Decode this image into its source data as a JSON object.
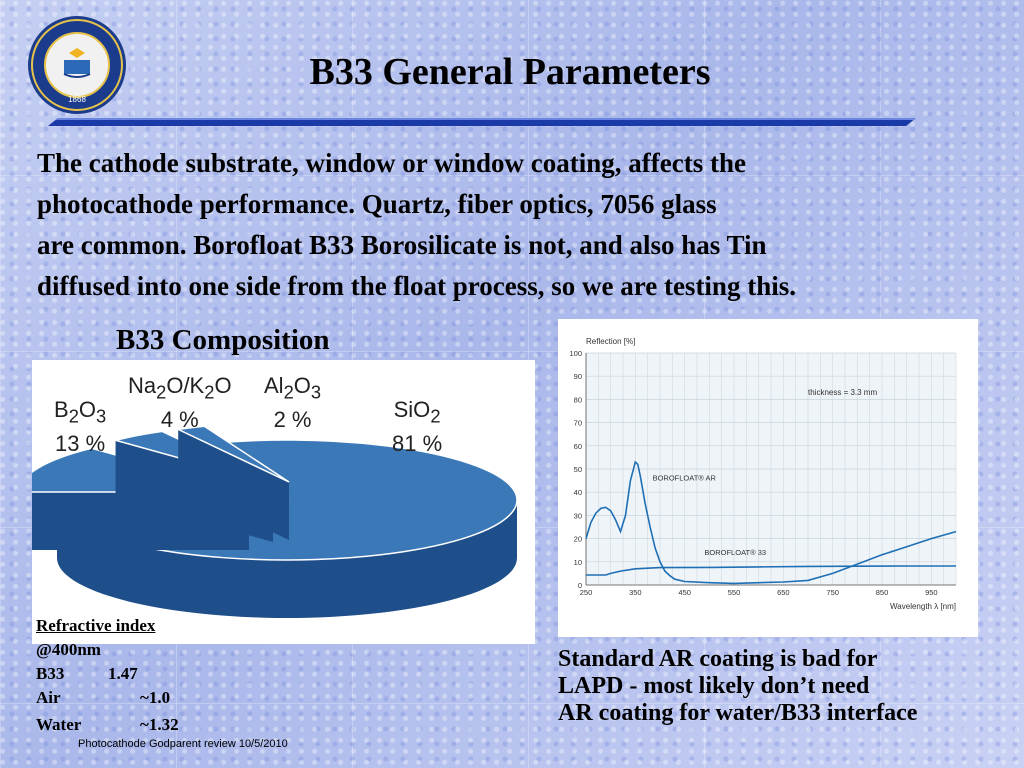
{
  "slide": {
    "title": "B33 General Parameters",
    "intro_lines": [
      "The cathode substrate, window or window coating, affects the",
      "photocathode performance. Quartz, fiber optics, 7056 glass",
      "are common. Borofloat B33 Borosilicate is not, and also has Tin",
      "diffused into one side from the float process, so we are testing this."
    ],
    "composition_title": "B33 Composition",
    "refractive": {
      "heading": "Refractive index",
      "subheading": "@400nm",
      "rows": [
        {
          "material": "B33",
          "value": "1.47"
        },
        {
          "material": "Air",
          "value": "~1.0"
        },
        {
          "material": "Water",
          "value": "~1.32"
        }
      ]
    },
    "ar_note_lines": [
      "Standard AR coating is bad for",
      "LAPD - most likely don’t need",
      "AR coating for water/B33 interface"
    ],
    "footer": "Photocathode Godparent review  10/5/2010",
    "seal": {
      "year": "1868",
      "ring_text": "THE UNIVERSITY OF CALIFORNIA BERKELEY"
    }
  },
  "colors": {
    "pie": "#3a78b8",
    "pie_dark": "#1f4f8a",
    "curve": "#1f6fb5",
    "rule": "#1a3aa8"
  },
  "chart_data": [
    {
      "type": "pie",
      "slices": [
        {
          "name": "SiO2",
          "label_main": "SiO",
          "label_sub": "2",
          "percent_label": "81 %",
          "value": 81
        },
        {
          "name": "B2O3",
          "label_main": "B",
          "label_sub": "2",
          "label_main2": "O",
          "label_sub2": "3",
          "percent_label": "13 %",
          "value": 13
        },
        {
          "name": "Na2O/K2O",
          "label_main": "Na",
          "label_sub": "2",
          "label_main2": "O/K",
          "label_sub2": "2",
          "label_main3": "O",
          "percent_label": "4 %",
          "value": 4
        },
        {
          "name": "Al2O3",
          "label_main": "Al",
          "label_sub": "2",
          "label_main2": "O",
          "label_sub2": "3",
          "percent_label": "2 %",
          "value": 2
        }
      ]
    },
    {
      "type": "line",
      "ylabel": "Reflection [%]",
      "xlabel": "Wavelength λ [nm]",
      "xlim": [
        250,
        1000
      ],
      "ylim": [
        0,
        100
      ],
      "xticks": [
        250,
        350,
        450,
        550,
        650,
        750,
        850,
        950
      ],
      "yticks": [
        0,
        10,
        20,
        30,
        40,
        50,
        60,
        70,
        80,
        90,
        100
      ],
      "grid": true,
      "annotation": "thickness = 3.3 mm",
      "series": [
        {
          "name": "BOROFLOAT® AR",
          "x": [
            250,
            260,
            270,
            280,
            290,
            300,
            310,
            320,
            330,
            340,
            350,
            355,
            360,
            370,
            380,
            390,
            400,
            410,
            420,
            430,
            450,
            500,
            550,
            600,
            650,
            700,
            750,
            800,
            850,
            900,
            950,
            1000
          ],
          "y": [
            20,
            27,
            31,
            33,
            33.5,
            32,
            28,
            23,
            30,
            45,
            53,
            52,
            47,
            35,
            25,
            16,
            10,
            6,
            4,
            2.5,
            1.5,
            1,
            0.7,
            1,
            1.3,
            2,
            5,
            9,
            13,
            16.5,
            20,
            23
          ]
        },
        {
          "name": "BOROFLOAT® 33",
          "x": [
            250,
            270,
            290,
            300,
            320,
            350,
            400,
            500,
            600,
            700,
            800,
            900,
            1000
          ],
          "y": [
            4.3,
            4.3,
            4.3,
            5,
            6,
            7,
            7.5,
            7.6,
            7.8,
            8,
            8.1,
            8.2,
            8.2
          ]
        }
      ]
    }
  ]
}
